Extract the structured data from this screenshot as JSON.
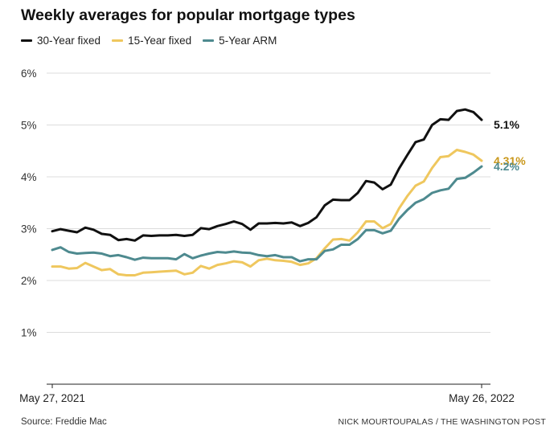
{
  "title": "Weekly averages for popular mortgage types",
  "source": "Source: Freddie Mac",
  "credit": "NICK MOURTOUPALAS / THE WASHINGTON POST",
  "chart_data": {
    "type": "line",
    "title": "Weekly averages for popular mortgage types",
    "xlabel": "",
    "ylabel": "",
    "ylim": [
      0,
      6
    ],
    "yticks": [
      1,
      2,
      3,
      4,
      5,
      6
    ],
    "ytick_labels": [
      "1%",
      "2%",
      "3%",
      "4%",
      "5%",
      "6%"
    ],
    "x_tick_labels": [
      "May 27, 2021",
      "May 26, 2022"
    ],
    "grid": "horizontal",
    "legend_position": "top-left",
    "x": [
      "2021-05-27",
      "2021-06-03",
      "2021-06-10",
      "2021-06-17",
      "2021-06-24",
      "2021-07-01",
      "2021-07-08",
      "2021-07-15",
      "2021-07-22",
      "2021-07-29",
      "2021-08-05",
      "2021-08-12",
      "2021-08-19",
      "2021-08-26",
      "2021-09-02",
      "2021-09-09",
      "2021-09-16",
      "2021-09-23",
      "2021-09-30",
      "2021-10-07",
      "2021-10-14",
      "2021-10-21",
      "2021-10-28",
      "2021-11-04",
      "2021-11-11",
      "2021-11-18",
      "2021-11-24",
      "2021-12-02",
      "2021-12-09",
      "2021-12-16",
      "2021-12-23",
      "2021-12-30",
      "2022-01-06",
      "2022-01-13",
      "2022-01-20",
      "2022-01-27",
      "2022-02-03",
      "2022-02-10",
      "2022-02-17",
      "2022-02-24",
      "2022-03-03",
      "2022-03-10",
      "2022-03-17",
      "2022-03-24",
      "2022-03-31",
      "2022-04-07",
      "2022-04-14",
      "2022-04-21",
      "2022-04-28",
      "2022-05-05",
      "2022-05-12",
      "2022-05-19",
      "2022-05-26"
    ],
    "series": [
      {
        "name": "30-Year fixed",
        "color": "#111111",
        "end_label": "5.1%",
        "values": [
          2.95,
          2.99,
          2.96,
          2.93,
          3.02,
          2.98,
          2.9,
          2.88,
          2.78,
          2.8,
          2.77,
          2.87,
          2.86,
          2.87,
          2.87,
          2.88,
          2.86,
          2.88,
          3.01,
          2.99,
          3.05,
          3.09,
          3.14,
          3.09,
          2.98,
          3.1,
          3.1,
          3.11,
          3.1,
          3.12,
          3.05,
          3.11,
          3.22,
          3.45,
          3.56,
          3.55,
          3.55,
          3.69,
          3.92,
          3.89,
          3.76,
          3.85,
          4.16,
          4.42,
          4.67,
          4.72,
          5.0,
          5.11,
          5.1,
          5.27,
          5.3,
          5.25,
          5.1
        ]
      },
      {
        "name": "15-Year fixed",
        "color": "#efc75e",
        "end_label": "4.31%",
        "values": [
          2.27,
          2.27,
          2.23,
          2.24,
          2.34,
          2.27,
          2.2,
          2.22,
          2.12,
          2.1,
          2.1,
          2.15,
          2.16,
          2.17,
          2.18,
          2.19,
          2.12,
          2.15,
          2.28,
          2.23,
          2.3,
          2.33,
          2.37,
          2.35,
          2.27,
          2.39,
          2.42,
          2.39,
          2.38,
          2.36,
          2.3,
          2.33,
          2.43,
          2.62,
          2.79,
          2.8,
          2.77,
          2.93,
          3.14,
          3.14,
          3.01,
          3.09,
          3.39,
          3.63,
          3.83,
          3.91,
          4.17,
          4.38,
          4.4,
          4.52,
          4.48,
          4.43,
          4.31
        ]
      },
      {
        "name": "5-Year ARM",
        "color": "#4e8a8f",
        "end_label": "4.2%",
        "values": [
          2.59,
          2.64,
          2.55,
          2.52,
          2.53,
          2.54,
          2.52,
          2.47,
          2.49,
          2.45,
          2.4,
          2.44,
          2.43,
          2.43,
          2.43,
          2.41,
          2.51,
          2.43,
          2.48,
          2.52,
          2.55,
          2.54,
          2.56,
          2.54,
          2.53,
          2.49,
          2.47,
          2.49,
          2.45,
          2.45,
          2.37,
          2.41,
          2.41,
          2.57,
          2.6,
          2.69,
          2.69,
          2.8,
          2.97,
          2.97,
          2.91,
          2.96,
          3.19,
          3.36,
          3.5,
          3.57,
          3.69,
          3.74,
          3.77,
          3.96,
          3.98,
          4.08,
          4.2
        ]
      }
    ]
  }
}
